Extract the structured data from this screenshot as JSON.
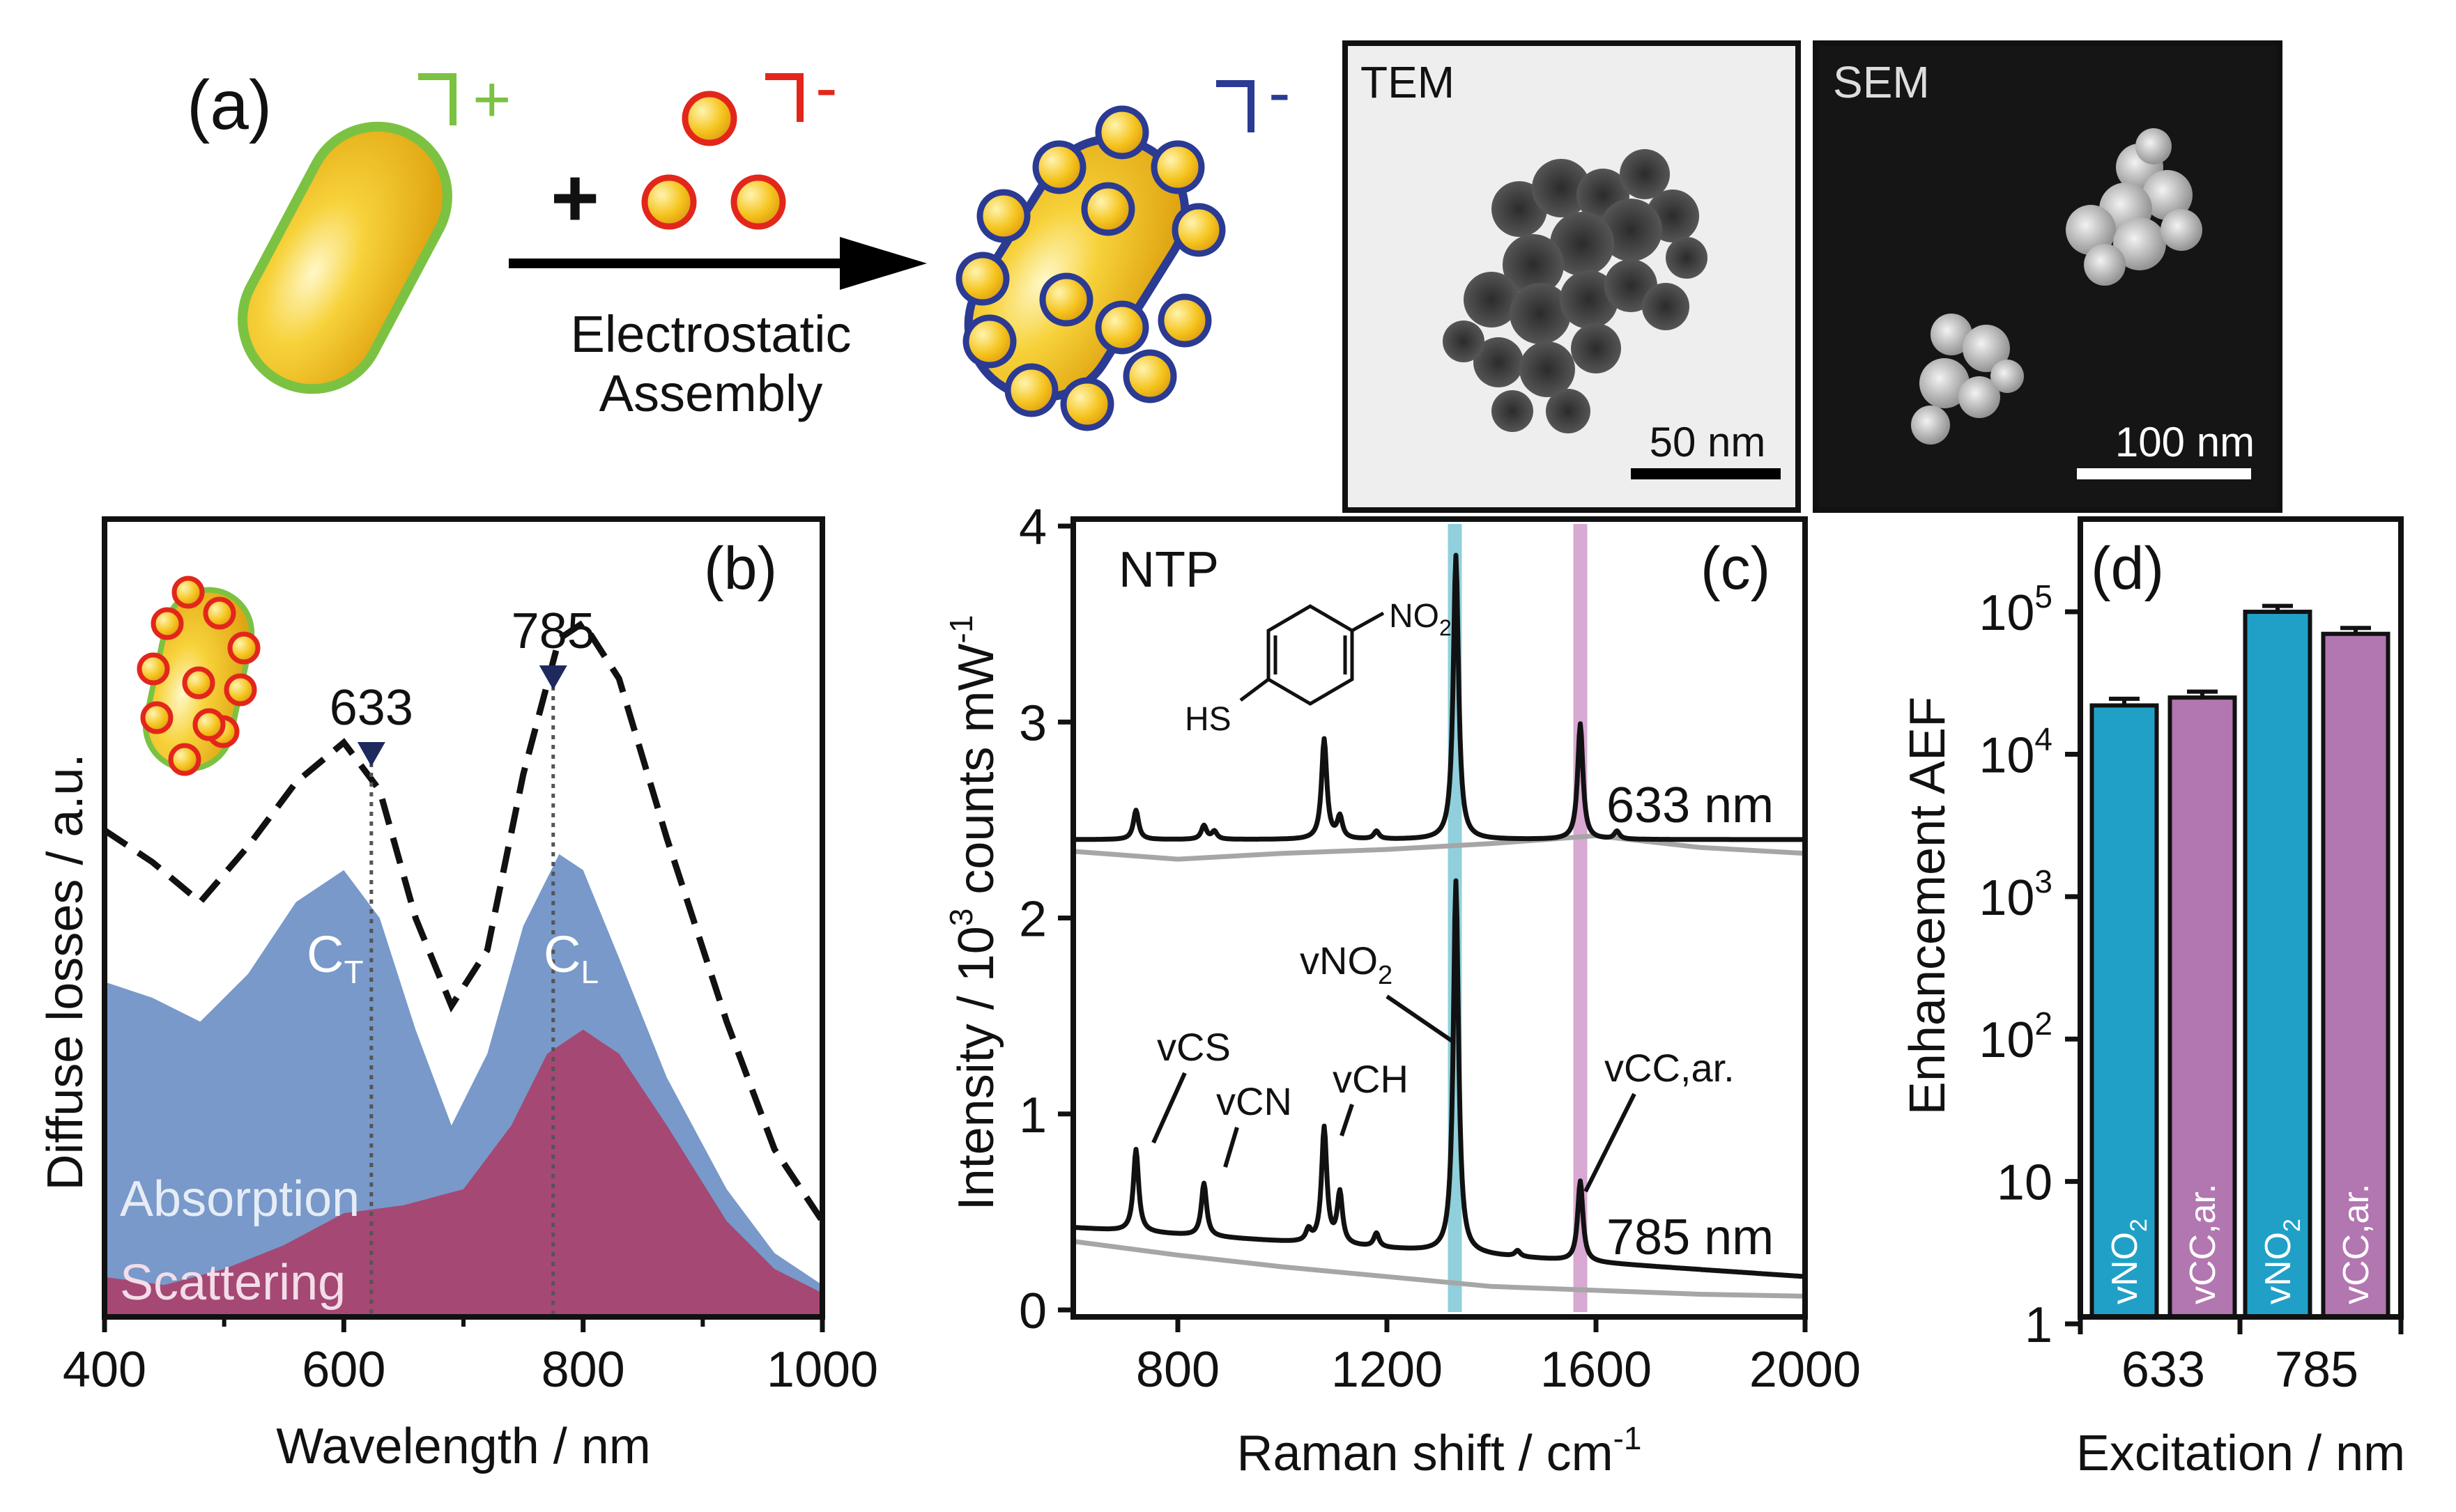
{
  "panel_a": {
    "label": "(a)",
    "rod_charge": "+",
    "particle_charge": "-",
    "assembly_charge": "-",
    "plus_sign": "+",
    "arrow_label_line1": "Electrostatic",
    "arrow_label_line2": "Assembly",
    "tem": {
      "title": "TEM",
      "scalebar": "50 nm"
    },
    "sem": {
      "title": "SEM",
      "scalebar": "100 nm"
    }
  },
  "colors": {
    "rod_fill": "#f3c21b",
    "rod_outline_green": "#7cc242",
    "particle_outline_red": "#e3261b",
    "assembly_outline_blue": "#2b3a92",
    "absorption": "#7899c9",
    "scattering": "#a54873",
    "bar_vno2": "#21a0c7",
    "bar_vcc": "#b276b0",
    "highlight_1330": "#8fd0dc",
    "highlight_1570": "#d8a9d2"
  },
  "chart_data": [
    {
      "panel": "(b)",
      "type": "area",
      "title": "",
      "xlabel": "Wavelength / nm",
      "ylabel": "Diffuse losses / a.u.",
      "xlim": [
        400,
        1000
      ],
      "ylim": [
        0,
        1
      ],
      "xticks": [
        "400",
        "600",
        "800",
        "1000"
      ],
      "series": [
        {
          "name": "Absorption",
          "style": "filled",
          "x": [
            400,
            440,
            480,
            520,
            560,
            600,
            630,
            660,
            690,
            720,
            750,
            780,
            800,
            830,
            870,
            920,
            960,
            1000
          ],
          "y": [
            0.42,
            0.4,
            0.37,
            0.43,
            0.52,
            0.56,
            0.5,
            0.36,
            0.24,
            0.33,
            0.49,
            0.58,
            0.56,
            0.45,
            0.3,
            0.16,
            0.08,
            0.04
          ]
        },
        {
          "name": "Scattering",
          "style": "filled",
          "x": [
            400,
            450,
            500,
            550,
            600,
            650,
            700,
            740,
            770,
            800,
            830,
            870,
            920,
            960,
            1000
          ],
          "y": [
            0.05,
            0.04,
            0.06,
            0.09,
            0.13,
            0.14,
            0.16,
            0.24,
            0.33,
            0.36,
            0.33,
            0.24,
            0.12,
            0.06,
            0.03
          ]
        },
        {
          "name": "Diffuse losses",
          "style": "dashed",
          "x": [
            400,
            440,
            480,
            520,
            560,
            600,
            630,
            660,
            690,
            720,
            750,
            780,
            800,
            830,
            870,
            920,
            960,
            1000
          ],
          "y": [
            0.61,
            0.57,
            0.52,
            0.59,
            0.67,
            0.72,
            0.66,
            0.5,
            0.39,
            0.46,
            0.68,
            0.85,
            0.87,
            0.8,
            0.6,
            0.37,
            0.21,
            0.12
          ]
        }
      ],
      "markers": [
        {
          "label": "633",
          "x": 623
        },
        {
          "label": "785",
          "x": 775
        }
      ],
      "annotations": {
        "ct_main": "C",
        "ct_sub": "T",
        "cl_main": "C",
        "cl_sub": "L",
        "absorption": "Absorption",
        "scattering": "Scattering"
      }
    },
    {
      "panel": "(c)",
      "type": "line",
      "xlabel_main": "Raman shift / cm",
      "xlabel_sup": "-1",
      "ylabel_main": "Intensity / 10",
      "ylabel_sup1": "3",
      "ylabel_mid": " counts mW",
      "ylabel_sup2": "-1",
      "xlim": [
        600,
        2000
      ],
      "ylim": [
        0,
        4
      ],
      "xticks": [
        "800",
        "1200",
        "1600",
        "2000"
      ],
      "yticks": [
        "0",
        "1",
        "2",
        "3",
        "4"
      ],
      "highlights": [
        1330,
        1570
      ],
      "molecule": {
        "name": "NTP",
        "sub1": "HS",
        "sub2_main": "NO",
        "sub2_sub": "2"
      },
      "series": [
        {
          "name": "633 nm",
          "baseline": 2.4,
          "peaks": [
            [
              720,
              0.15
            ],
            [
              850,
              0.07
            ],
            [
              870,
              0.04
            ],
            [
              1080,
              0.51
            ],
            [
              1110,
              0.11
            ],
            [
              1180,
              0.04
            ],
            [
              1332,
              1.45
            ],
            [
              1570,
              0.59
            ],
            [
              1640,
              0.04
            ]
          ]
        },
        {
          "name": "633 nm reference",
          "style": "grey",
          "x": [
            600,
            800,
            1000,
            1200,
            1400,
            1600,
            1800,
            2000
          ],
          "y": [
            2.34,
            2.3,
            2.33,
            2.35,
            2.38,
            2.42,
            2.36,
            2.33
          ]
        },
        {
          "name": "785 nm",
          "baseline_start": 0.42,
          "baseline_end": 0.17,
          "peaks": [
            [
              720,
              0.42
            ],
            [
              850,
              0.27
            ],
            [
              1050,
              0.06
            ],
            [
              1080,
              0.59
            ],
            [
              1110,
              0.26
            ],
            [
              1180,
              0.07
            ],
            [
              1332,
              1.9
            ],
            [
              1450,
              0.03
            ],
            [
              1570,
              0.41
            ]
          ]
        },
        {
          "name": "785 nm reference",
          "style": "grey",
          "x": [
            600,
            800,
            1000,
            1200,
            1400,
            1600,
            1800,
            2000
          ],
          "y": [
            0.35,
            0.28,
            0.22,
            0.17,
            0.12,
            0.1,
            0.08,
            0.07
          ]
        }
      ],
      "labels": {
        "trace1": "633 nm",
        "trace2": "785 nm",
        "vcs": "vCS",
        "vcn": "vCN",
        "vch": "vCH",
        "vno2_main": "vNO",
        "vno2_sub": "2",
        "vcc": "vCC,ar."
      }
    },
    {
      "panel": "(d)",
      "type": "bar",
      "xlabel": "Excitation / nm",
      "ylabel": "Enhancement AEF",
      "yscale": "log",
      "ylim": [
        1,
        400000
      ],
      "yticks": [
        {
          "value": 1,
          "base": "1",
          "exp": ""
        },
        {
          "value": 10,
          "base": "10",
          "exp": ""
        },
        {
          "value": 100,
          "base": "10",
          "exp": "2"
        },
        {
          "value": 1000,
          "base": "10",
          "exp": "3"
        },
        {
          "value": 10000,
          "base": "10",
          "exp": "4"
        },
        {
          "value": 100000,
          "base": "10",
          "exp": "5"
        }
      ],
      "categories": [
        "633",
        "785"
      ],
      "series": [
        {
          "name_main": "vNO",
          "name_sub": "2",
          "values": [
            22000,
            100000
          ],
          "errors": [
            2500,
            10000
          ]
        },
        {
          "name_main": "vCC,ar.",
          "name_sub": "",
          "values": [
            25000,
            70000
          ],
          "errors": [
            2500,
            7000
          ]
        }
      ]
    }
  ]
}
